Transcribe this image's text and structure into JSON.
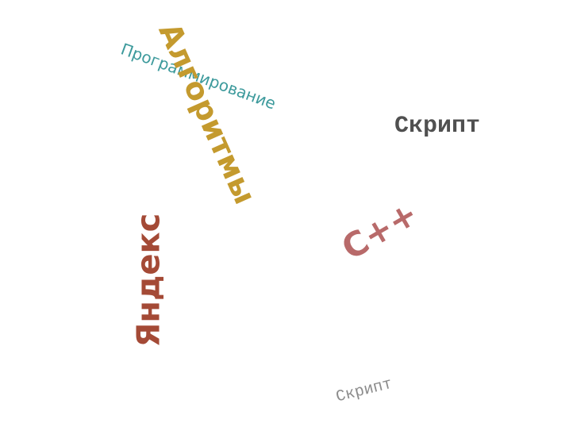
{
  "words": {
    "programming": {
      "text": "Программирование",
      "color": "#3d9a9c"
    },
    "algorithms": {
      "text": "Алгоритмы",
      "color": "#c49a2e"
    },
    "script_1": {
      "text": "Скрипт",
      "color": "#505050"
    },
    "cpp": {
      "text": "C++",
      "color": "#b86a6a"
    },
    "yandex": {
      "text": "Яндекс",
      "color": "#a44a36"
    },
    "script_2": {
      "text": "Скрипт",
      "color": "#8c8c8c"
    }
  }
}
